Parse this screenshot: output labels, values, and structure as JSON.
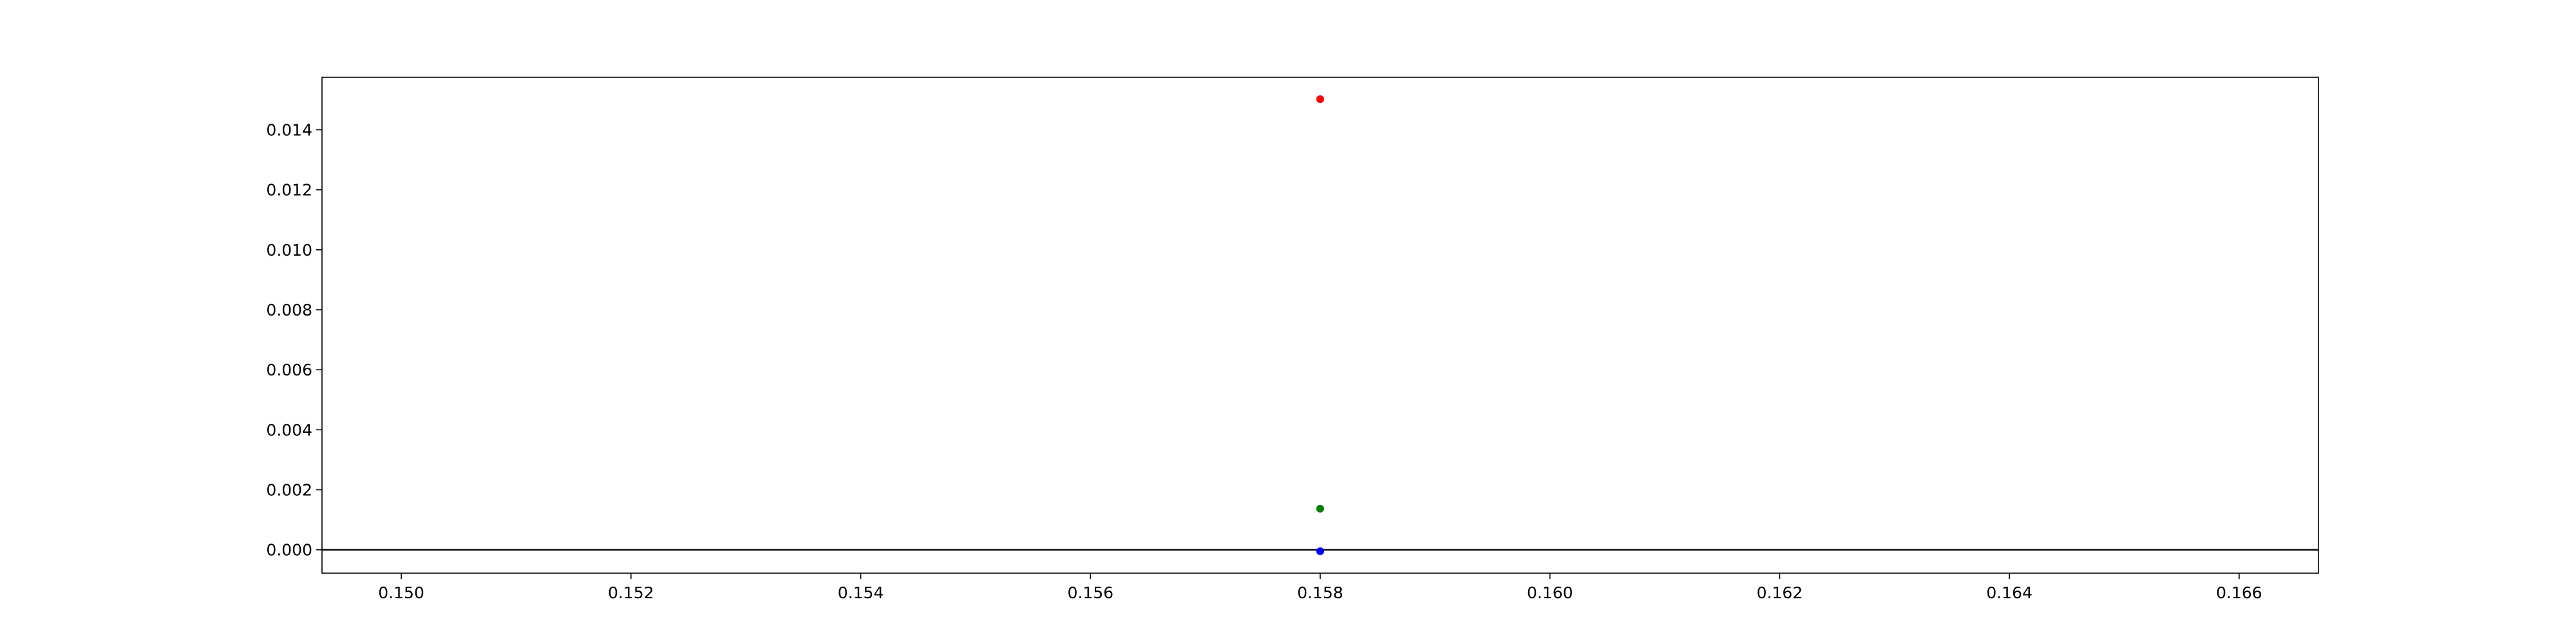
{
  "chart_data": {
    "type": "scatter",
    "title": "",
    "xlabel": "",
    "ylabel": "",
    "xlim": [
      0.14931,
      0.16669
    ],
    "ylim": [
      -0.00078,
      0.01575
    ],
    "grid": false,
    "legend": "none",
    "x_ticks": [
      0.15,
      0.152,
      0.154,
      0.156,
      0.158,
      0.16,
      0.162,
      0.164,
      0.166
    ],
    "x_tick_labels": [
      "0.150",
      "0.152",
      "0.154",
      "0.156",
      "0.158",
      "0.160",
      "0.162",
      "0.164",
      "0.166"
    ],
    "y_ticks": [
      0.0,
      0.002,
      0.004,
      0.006,
      0.008,
      0.01,
      0.012,
      0.014
    ],
    "y_tick_labels": [
      "0.000",
      "0.002",
      "0.004",
      "0.006",
      "0.008",
      "0.010",
      "0.012",
      "0.014"
    ],
    "reference_line": {
      "y": 0.0,
      "color": "#000000"
    },
    "series": [
      {
        "color": "#ff0000",
        "points": [
          {
            "x": 0.158,
            "y": 0.01502
          }
        ]
      },
      {
        "color": "#008000",
        "points": [
          {
            "x": 0.158,
            "y": 0.00137
          }
        ]
      },
      {
        "color": "#0000ff",
        "points": [
          {
            "x": 0.158,
            "y": -5e-05
          }
        ]
      }
    ]
  }
}
